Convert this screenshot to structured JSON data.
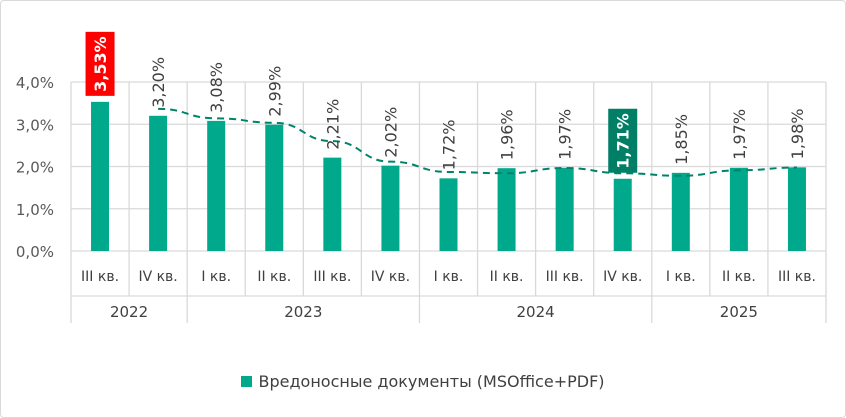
{
  "chart_data": {
    "type": "bar",
    "categories": [
      "III кв.",
      "IV кв.",
      "I кв.",
      "II кв.",
      "III кв.",
      "IV кв.",
      "I кв.",
      "II кв.",
      "III кв.",
      "IV кв.",
      "I кв.",
      "II кв.",
      "III кв."
    ],
    "groups": [
      {
        "label": "2022",
        "count": 2
      },
      {
        "label": "2023",
        "count": 4
      },
      {
        "label": "2024",
        "count": 4
      },
      {
        "label": "2025",
        "count": 3
      }
    ],
    "series": [
      {
        "name": "Вредоносные документы (MSOffice+PDF)",
        "values": [
          3.53,
          3.2,
          3.08,
          2.99,
          2.21,
          2.02,
          1.72,
          1.96,
          1.97,
          1.71,
          1.85,
          1.97,
          1.98
        ],
        "color": "#00a98b"
      }
    ],
    "data_labels": [
      "3,53%",
      "3,20%",
      "3,08%",
      "2,99%",
      "2,21%",
      "2,02%",
      "1,72%",
      "1,96%",
      "1,97%",
      "1,71%",
      "1,85%",
      "1,97%",
      "1,98%"
    ],
    "highlighted_labels": [
      {
        "index": 0,
        "color": "#ff0000"
      },
      {
        "index": 9,
        "color": "#007f66"
      }
    ],
    "trendline": {
      "type": "moving-average",
      "period": 2,
      "style": "dashed",
      "color": "#00836b"
    },
    "yticks": [
      "0,0%",
      "1,0%",
      "2,0%",
      "3,0%",
      "4,0%"
    ],
    "ylim": [
      0,
      4
    ],
    "grid": true,
    "legend": "bottom"
  }
}
